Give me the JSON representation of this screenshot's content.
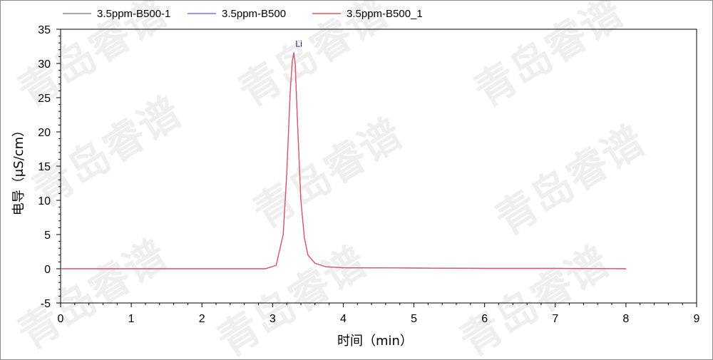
{
  "watermark": "青岛睿谱",
  "chart_data": {
    "type": "line",
    "title": "",
    "xlabel": "时间（min）",
    "ylabel": "电导（μS/cm）",
    "xlim": [
      0,
      9
    ],
    "ylim": [
      -5,
      35
    ],
    "xticks": [
      0,
      1,
      2,
      3,
      4,
      5,
      6,
      7,
      8,
      9
    ],
    "yticks": [
      -5,
      0,
      5,
      10,
      15,
      20,
      25,
      30,
      35
    ],
    "grid": false,
    "legend_position": "top",
    "series": [
      {
        "name": "3.5ppm-B500-1",
        "color": "#9a8a8a",
        "x": [
          0,
          1,
          2,
          2.9,
          3.05,
          3.15,
          3.2,
          3.25,
          3.28,
          3.3,
          3.32,
          3.35,
          3.4,
          3.45,
          3.5,
          3.6,
          3.75,
          4.0,
          5.0,
          6.0,
          7.0,
          8.0
        ],
        "y": [
          0,
          0,
          0,
          0,
          0.5,
          5,
          14,
          26,
          30.5,
          31.5,
          30,
          22,
          10,
          4.5,
          2,
          0.8,
          0.3,
          0.15,
          0.1,
          0.05,
          0.05,
          0
        ]
      },
      {
        "name": "3.5ppm-B500",
        "color": "#6e79e6",
        "x": [
          0,
          1,
          2,
          2.9,
          3.05,
          3.15,
          3.2,
          3.25,
          3.28,
          3.3,
          3.32,
          3.35,
          3.4,
          3.45,
          3.5,
          3.6,
          3.75,
          4.0,
          5.0,
          6.0,
          7.0,
          8.0
        ],
        "y": [
          0,
          0,
          0,
          0,
          0.5,
          5,
          14,
          26,
          30.5,
          31.6,
          30,
          22,
          10,
          4.5,
          2,
          0.8,
          0.3,
          0.15,
          0.1,
          0.05,
          0.05,
          0
        ]
      },
      {
        "name": "3.5ppm-B500_1",
        "color": "#e8525c",
        "x": [
          0,
          1,
          2,
          2.9,
          3.05,
          3.15,
          3.2,
          3.25,
          3.28,
          3.3,
          3.32,
          3.35,
          3.4,
          3.45,
          3.5,
          3.6,
          3.75,
          4.0,
          5.0,
          6.0,
          7.0,
          8.0
        ],
        "y": [
          0,
          0,
          0,
          0,
          0.5,
          5,
          14,
          26,
          30.5,
          31.4,
          30,
          22,
          10,
          4.5,
          2,
          0.8,
          0.3,
          0.15,
          0.1,
          0.05,
          0.05,
          0
        ]
      }
    ],
    "annotations": [
      {
        "text": "Li",
        "x": 3.3,
        "y": 31.5,
        "color": "#1a1ab0"
      }
    ]
  }
}
